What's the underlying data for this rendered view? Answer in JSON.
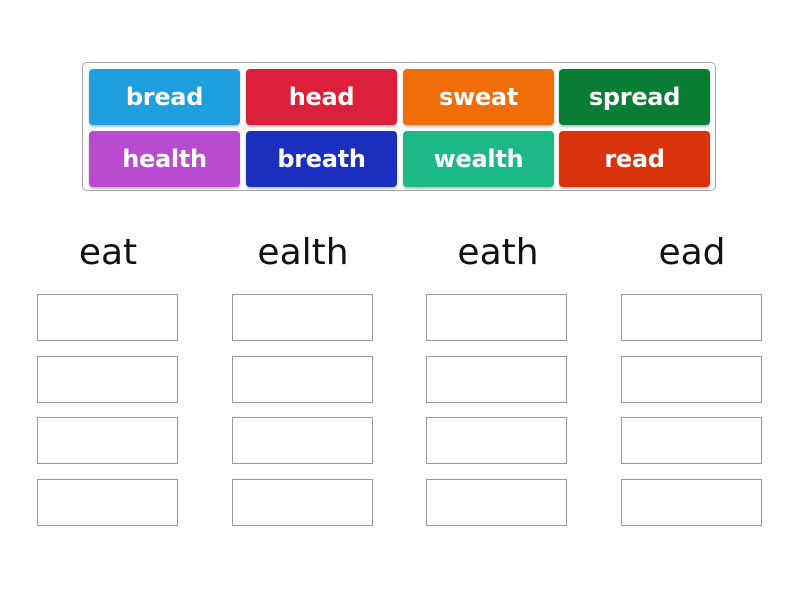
{
  "tiles": [
    {
      "label": "bread",
      "color": "#1e9fe0"
    },
    {
      "label": "head",
      "color": "#dc1f3a"
    },
    {
      "label": "sweat",
      "color": "#f06d0a"
    },
    {
      "label": "spread",
      "color": "#0a7d35"
    },
    {
      "label": "health",
      "color": "#b84bd0"
    },
    {
      "label": "breath",
      "color": "#1a2fbd"
    },
    {
      "label": "wealth",
      "color": "#1cb888"
    },
    {
      "label": "read",
      "color": "#d9330c"
    }
  ],
  "columns": [
    {
      "heading": "eat"
    },
    {
      "heading": "ealth"
    },
    {
      "heading": "eath"
    },
    {
      "heading": "ead"
    }
  ]
}
